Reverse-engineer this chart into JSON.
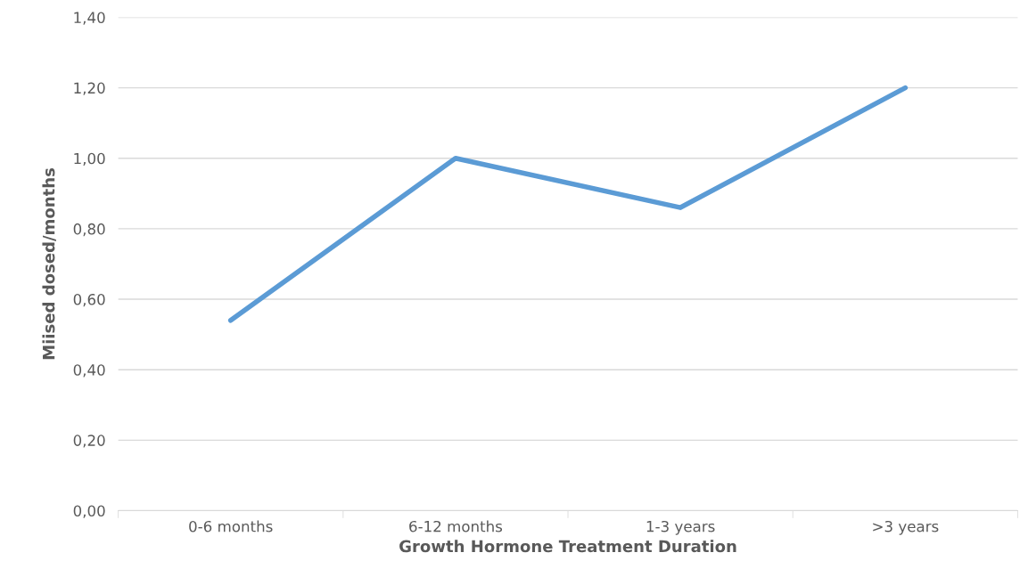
{
  "chart_data": {
    "type": "line",
    "xlabel": "Growth Hormone Treatment Duration",
    "ylabel": "Miised dosed/months",
    "categories": [
      "0-6 months",
      "6-12 months",
      "1-3 years",
      ">3 years"
    ],
    "series": [
      {
        "color": "#5b9bd5",
        "values": [
          0.54,
          1.0,
          0.86,
          1.2
        ]
      }
    ],
    "ylim": [
      0,
      1.4
    ],
    "yticks": [
      {
        "value": 0,
        "label": "0,00"
      },
      {
        "value": 0.2,
        "label": "0,20"
      },
      {
        "value": 0.4,
        "label": "0,40"
      },
      {
        "value": 0.6,
        "label": "0,60"
      },
      {
        "value": 0.8,
        "label": "0,80"
      },
      {
        "value": 1.0,
        "label": "1,00"
      },
      {
        "value": 1.2,
        "label": "1,20"
      },
      {
        "value": 1.4,
        "label": "1,40"
      }
    ],
    "grid": "y",
    "marker": "none",
    "line_style": "solid",
    "legend": false
  }
}
